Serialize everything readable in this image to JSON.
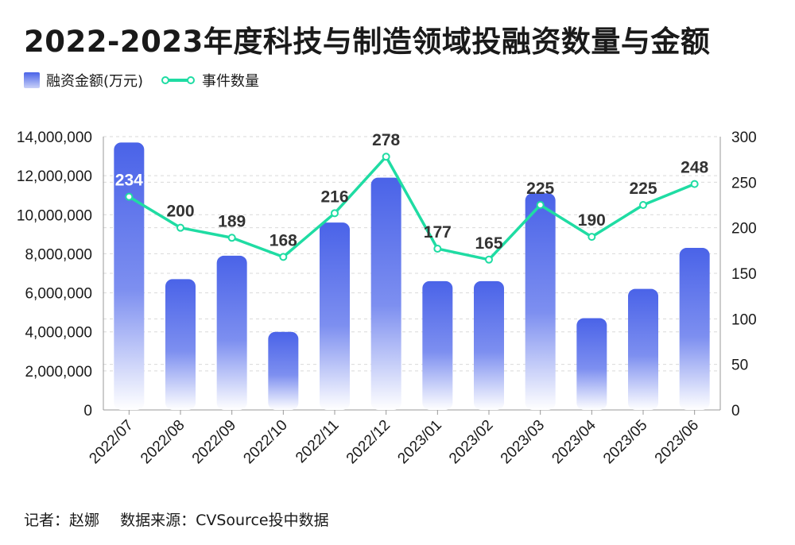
{
  "title": "2022-2023年度科技与制造领域投融资数量与金额",
  "legend": {
    "bar_label": "融资金额(万元)",
    "line_label": "事件数量"
  },
  "footer": {
    "reporter": "记者：赵娜",
    "source": "数据来源：CVSource投中数据"
  },
  "colors": {
    "bar_top": "#4a63e8",
    "bar_bottom": "#ffffff",
    "line": "#1fdca3",
    "grid": "#d9d9d9",
    "axis_text": "#1a1a1a"
  },
  "chart_data": {
    "type": "bar",
    "categories": [
      "2022/07",
      "2022/08",
      "2022/09",
      "2022/10",
      "2022/11",
      "2022/12",
      "2023/01",
      "2023/02",
      "2023/03",
      "2023/04",
      "2023/05",
      "2023/06"
    ],
    "series": [
      {
        "name": "融资金额(万元)",
        "type": "bar",
        "axis": "left",
        "values": [
          13700000,
          6700000,
          7900000,
          4000000,
          9600000,
          11900000,
          6600000,
          6600000,
          11100000,
          4700000,
          6200000,
          8300000
        ]
      },
      {
        "name": "事件数量",
        "type": "line",
        "axis": "right",
        "values": [
          234,
          200,
          189,
          168,
          216,
          278,
          177,
          165,
          225,
          190,
          225,
          248
        ]
      }
    ],
    "y_left": {
      "lim": [
        0,
        14000000
      ],
      "ticks": [
        0,
        2000000,
        4000000,
        6000000,
        8000000,
        10000000,
        12000000,
        14000000
      ],
      "tick_labels": [
        "0",
        "2,000,000",
        "4,000,000",
        "6,000,000",
        "8,000,000",
        "10,000,000",
        "12,000,000",
        "14,000,000"
      ]
    },
    "y_right": {
      "lim": [
        0,
        300
      ],
      "ticks": [
        0,
        50,
        100,
        150,
        200,
        250,
        300
      ],
      "tick_labels": [
        "0",
        "50",
        "100",
        "150",
        "200",
        "250",
        "300"
      ]
    },
    "grid": true,
    "legend_position": "top-left"
  }
}
